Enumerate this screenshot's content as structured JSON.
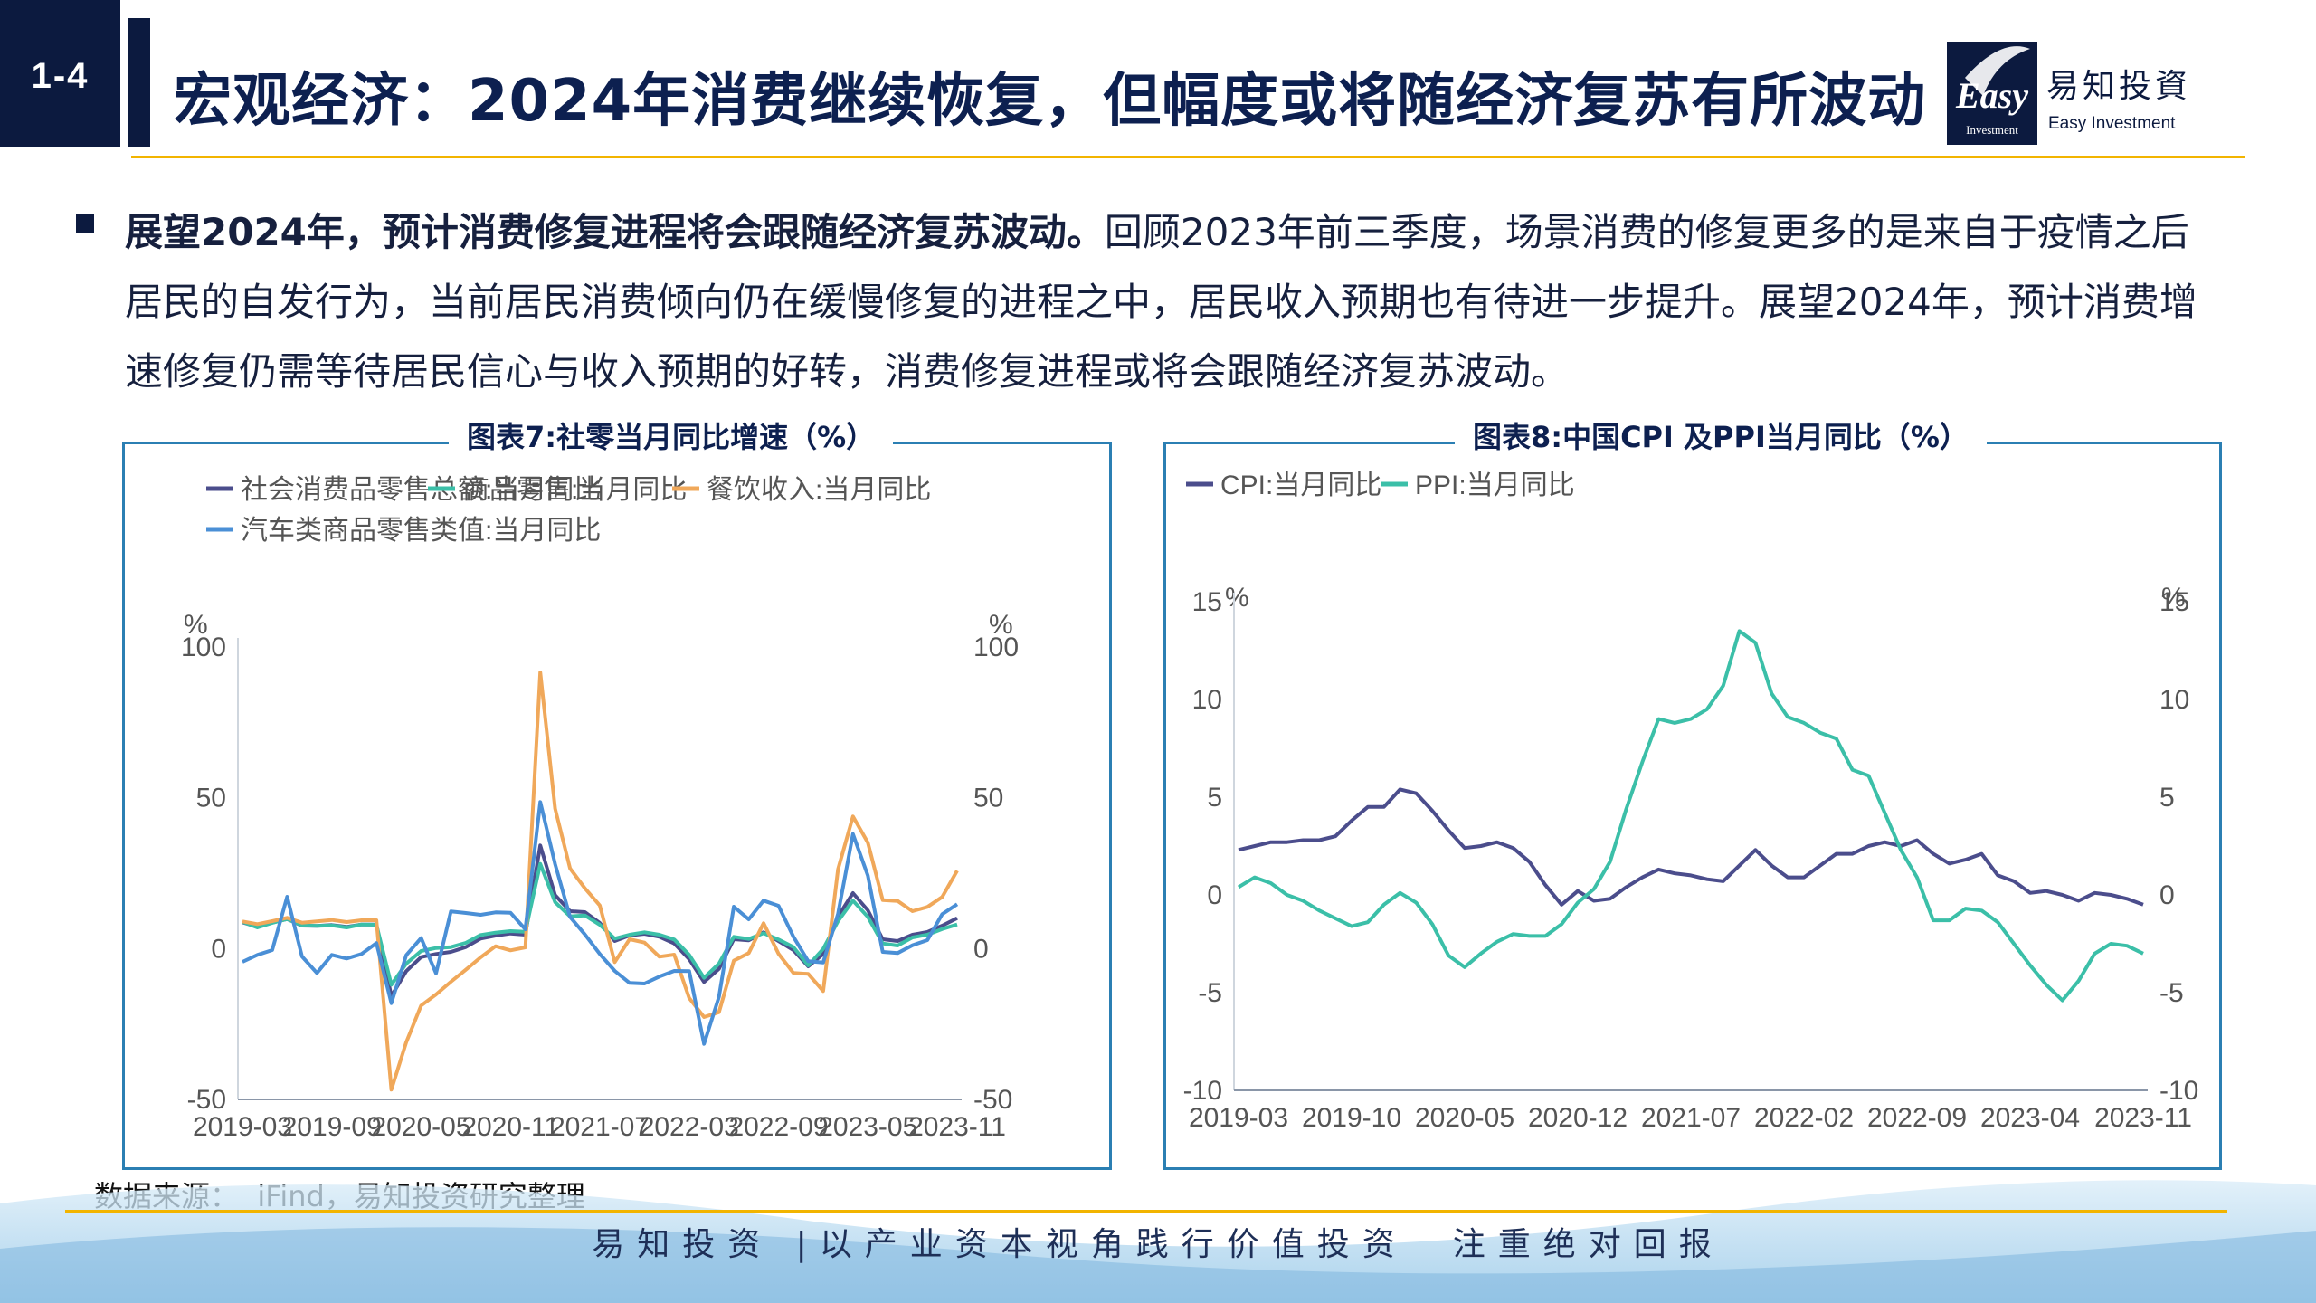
{
  "header": {
    "section_number": "1-4",
    "title": "宏观经济：2024年消费继续恢复，但幅度或将随经济复苏有所波动",
    "logo_mark": "Easy",
    "logo_mark_sub": "Investment",
    "logo_cn": "易知投資",
    "logo_en": "Easy Investment"
  },
  "body": {
    "bold_lead": "展望2024年，预计消费修复进程将会跟随经济复苏波动。",
    "text": "回顾2023年前三季度，场景消费的修复更多的是来自于疫情之后居民的自发行为，当前居民消费倾向仍在缓慢修复的进程之中，居民收入预期也有待进一步提升。展望2024年，预计消费增速修复仍需等待居民信心与收入预期的好转，消费修复进程或将会跟随经济复苏波动。"
  },
  "colors": {
    "navy": "#0c1a3f",
    "gold": "#f2b400",
    "frame": "#2b7fb3",
    "series_total": "#4b4d8c",
    "series_goods": "#3bbfa8",
    "series_catering": "#f0a85a",
    "series_auto": "#4a8fd6",
    "series_cpi": "#4b4d8c",
    "series_ppi": "#3bbfa8"
  },
  "chart_data": [
    {
      "type": "line",
      "title": "图表7:社零当月同比增速（%）",
      "ylabel_left": "%",
      "ylabel_right": "%",
      "ylim": [
        -50,
        100
      ],
      "yticks": [
        -50,
        0,
        50,
        100
      ],
      "xtick_labels": [
        "2019-03",
        "2019-09",
        "2020-05",
        "2020-11",
        "2021-07",
        "2022-03",
        "2022-09",
        "2023-05",
        "2023-11"
      ],
      "legend_position": "top-left",
      "grid": false,
      "x": [
        "2019-03",
        "2019-04",
        "2019-05",
        "2019-06",
        "2019-07",
        "2019-08",
        "2019-09",
        "2019-10",
        "2019-11",
        "2019-12",
        "2020-03",
        "2020-04",
        "2020-05",
        "2020-06",
        "2020-07",
        "2020-08",
        "2020-09",
        "2020-10",
        "2020-11",
        "2020-12",
        "2021-03",
        "2021-04",
        "2021-05",
        "2021-06",
        "2021-07",
        "2021-08",
        "2021-09",
        "2021-10",
        "2021-11",
        "2021-12",
        "2022-03",
        "2022-04",
        "2022-05",
        "2022-06",
        "2022-07",
        "2022-08",
        "2022-09",
        "2022-10",
        "2022-11",
        "2022-12",
        "2023-03",
        "2023-04",
        "2023-05",
        "2023-06",
        "2023-07",
        "2023-08",
        "2023-09",
        "2023-10",
        "2023-11"
      ],
      "series": [
        {
          "name": "社会消费品零售总额:当月同比",
          "values": [
            8.7,
            7.2,
            8.6,
            9.8,
            7.6,
            7.5,
            7.8,
            7.2,
            8.0,
            8.0,
            -15.8,
            -7.5,
            -2.8,
            -1.8,
            -1.1,
            0.5,
            3.3,
            4.3,
            5.0,
            4.6,
            34.2,
            17.7,
            12.4,
            12.1,
            8.5,
            2.5,
            4.4,
            4.9,
            3.9,
            1.7,
            -3.5,
            -11.1,
            -6.7,
            3.1,
            2.7,
            5.4,
            2.5,
            -0.5,
            -5.9,
            -1.8,
            10.6,
            18.4,
            12.7,
            3.1,
            2.5,
            4.6,
            5.5,
            7.6,
            10.1
          ]
        },
        {
          "name": "商品零售:当月同比",
          "values": [
            8.9,
            7.0,
            8.5,
            9.8,
            7.7,
            7.5,
            7.7,
            7.0,
            8.0,
            7.9,
            -12.0,
            -5.0,
            -0.8,
            0.2,
            0.5,
            1.9,
            4.5,
            5.3,
            5.8,
            5.6,
            28.1,
            15.4,
            10.7,
            11.0,
            7.9,
            3.3,
            4.6,
            5.4,
            4.6,
            3.0,
            -2.1,
            -9.7,
            -5.0,
            3.9,
            3.2,
            5.1,
            3.0,
            0.5,
            -5.6,
            -0.1,
            9.1,
            15.9,
            10.5,
            1.7,
            1.0,
            3.7,
            4.6,
            6.5,
            8.0
          ]
        },
        {
          "name": "餐饮收入:当月同比",
          "values": [
            9.0,
            8.1,
            9.1,
            10.2,
            8.6,
            9.0,
            9.5,
            8.8,
            9.4,
            9.4,
            -46.8,
            -31.1,
            -18.9,
            -15.2,
            -11.0,
            -7.0,
            -2.9,
            0.8,
            -0.6,
            0.4,
            91.6,
            46.4,
            26.6,
            20.0,
            14.3,
            -4.5,
            3.1,
            2.0,
            -2.7,
            -2.0,
            -16.4,
            -22.7,
            -21.1,
            -4.0,
            -1.5,
            8.4,
            -1.7,
            -8.1,
            -8.4,
            -14.1,
            26.3,
            43.8,
            35.1,
            16.1,
            15.8,
            12.4,
            13.8,
            17.1,
            25.8
          ]
        },
        {
          "name": "汽车类商品零售类值:当月同比",
          "values": [
            -4.4,
            -2.1,
            -0.5,
            17.2,
            -2.6,
            -8.1,
            -2.1,
            -3.3,
            -1.8,
            1.8,
            -18.1,
            -2.2,
            3.5,
            -8.2,
            12.3,
            11.8,
            11.2,
            12.0,
            11.9,
            6.4,
            48.6,
            28.0,
            10.5,
            4.7,
            -1.8,
            -7.4,
            -11.4,
            -11.6,
            -9.3,
            -7.4,
            -7.5,
            -31.6,
            -16.0,
            13.9,
            9.7,
            15.9,
            14.2,
            3.9,
            -4.2,
            -4.6,
            11.5,
            38.0,
            24.2,
            -1.1,
            -1.5,
            1.1,
            2.8,
            11.4,
            14.7
          ]
        }
      ]
    },
    {
      "type": "line",
      "title": "图表8:中国CPI 及PPI当月同比（%）",
      "ylabel_left": "%",
      "ylabel_right": "%",
      "ylim": [
        -10,
        15
      ],
      "yticks": [
        -10,
        -5,
        0,
        5,
        10,
        15
      ],
      "xtick_labels": [
        "2019-03",
        "2019-10",
        "2020-05",
        "2020-12",
        "2021-07",
        "2022-02",
        "2022-09",
        "2023-04",
        "2023-11"
      ],
      "legend_position": "top-left",
      "grid": false,
      "x": [
        "2019-03",
        "2019-04",
        "2019-05",
        "2019-06",
        "2019-07",
        "2019-08",
        "2019-09",
        "2019-10",
        "2019-11",
        "2019-12",
        "2020-01",
        "2020-02",
        "2020-03",
        "2020-04",
        "2020-05",
        "2020-06",
        "2020-07",
        "2020-08",
        "2020-09",
        "2020-10",
        "2020-11",
        "2020-12",
        "2021-01",
        "2021-02",
        "2021-03",
        "2021-04",
        "2021-05",
        "2021-06",
        "2021-07",
        "2021-08",
        "2021-09",
        "2021-10",
        "2021-11",
        "2021-12",
        "2022-01",
        "2022-02",
        "2022-03",
        "2022-04",
        "2022-05",
        "2022-06",
        "2022-07",
        "2022-08",
        "2022-09",
        "2022-10",
        "2022-11",
        "2022-12",
        "2023-01",
        "2023-02",
        "2023-03",
        "2023-04",
        "2023-05",
        "2023-06",
        "2023-07",
        "2023-08",
        "2023-09",
        "2023-10",
        "2023-11"
      ],
      "series": [
        {
          "name": "CPI:当月同比",
          "values": [
            2.3,
            2.5,
            2.7,
            2.7,
            2.8,
            2.8,
            3.0,
            3.8,
            4.5,
            4.5,
            5.4,
            5.2,
            4.3,
            3.3,
            2.4,
            2.5,
            2.7,
            2.4,
            1.7,
            0.5,
            -0.5,
            0.2,
            -0.3,
            -0.2,
            0.4,
            0.9,
            1.3,
            1.1,
            1.0,
            0.8,
            0.7,
            1.5,
            2.3,
            1.5,
            0.9,
            0.9,
            1.5,
            2.1,
            2.1,
            2.5,
            2.7,
            2.5,
            2.8,
            2.1,
            1.6,
            1.8,
            2.1,
            1.0,
            0.7,
            0.1,
            0.2,
            0.0,
            -0.3,
            0.1,
            0.0,
            -0.2,
            -0.5
          ]
        },
        {
          "name": "PPI:当月同比",
          "values": [
            0.4,
            0.9,
            0.6,
            0.0,
            -0.3,
            -0.8,
            -1.2,
            -1.6,
            -1.4,
            -0.5,
            0.1,
            -0.4,
            -1.5,
            -3.1,
            -3.7,
            -3.0,
            -2.4,
            -2.0,
            -2.1,
            -2.1,
            -1.5,
            -0.4,
            0.3,
            1.7,
            4.4,
            6.8,
            9.0,
            8.8,
            9.0,
            9.5,
            10.7,
            13.5,
            12.9,
            10.3,
            9.1,
            8.8,
            8.3,
            8.0,
            6.4,
            6.1,
            4.2,
            2.3,
            0.9,
            -1.3,
            -1.3,
            -0.7,
            -0.8,
            -1.4,
            -2.5,
            -3.6,
            -4.6,
            -5.4,
            -4.4,
            -3.0,
            -2.5,
            -2.6,
            -3.0
          ]
        }
      ]
    }
  ],
  "source": {
    "label": "数据来源：",
    "text": "iFind，易知投资研究整理"
  },
  "footer": {
    "slogan": "易知投资 |以产业资本视角践行价值投资　注重绝对回报"
  }
}
